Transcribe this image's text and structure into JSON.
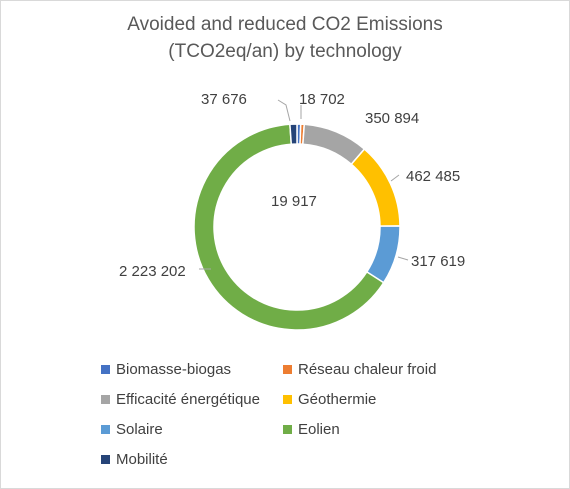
{
  "chart_data": {
    "type": "pie",
    "donut": true,
    "title": [
      "Avoided and reduced CO2 Emissions",
      "(TCO2eq/an) by technology"
    ],
    "series": [
      {
        "name": "Biomasse-biogas",
        "value": 19917,
        "label": "19 917",
        "color": "#4472c4"
      },
      {
        "name": "Réseau chaleur froid",
        "value": 18702,
        "label": "18 702",
        "color": "#ed7d31"
      },
      {
        "name": "Efficacité énergétique",
        "value": 350894,
        "label": "350 894",
        "color": "#a5a5a5"
      },
      {
        "name": "Géothermie",
        "value": 462485,
        "label": "462 485",
        "color": "#ffc000"
      },
      {
        "name": "Solaire",
        "value": 317619,
        "label": "317 619",
        "color": "#5b9bd5"
      },
      {
        "name": "Eolien",
        "value": 2223202,
        "label": "2 223 202",
        "color": "#70ad47"
      },
      {
        "name": "Mobilité",
        "value": 37676,
        "label": "37 676",
        "color": "#264478"
      }
    ],
    "legend_position": "bottom"
  }
}
